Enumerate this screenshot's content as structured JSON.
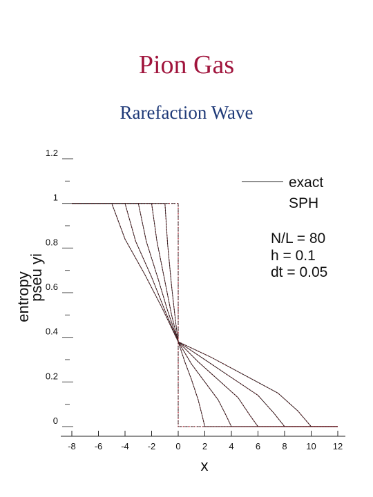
{
  "header": {
    "title": "Pion Gas",
    "subtitle": "Rarefaction Wave"
  },
  "chart_data": {
    "type": "line",
    "xlabel": "x",
    "ylabel_line1": "entropy",
    "ylabel_line2": "pseu yi",
    "xlim": [
      -8,
      12
    ],
    "ylim": [
      0,
      1.2
    ],
    "x_ticks": [
      "-8",
      "-6",
      "-4",
      "-2",
      "0",
      "2",
      "4",
      "6",
      "8",
      "10",
      "12"
    ],
    "y_ticks": [
      "0",
      "0.2",
      "0.4",
      "0.6",
      "0.8",
      "1",
      "1.2"
    ],
    "legend": {
      "placement": "top-right",
      "entries": [
        "exact",
        "SPH"
      ]
    },
    "annotations": [
      "N/L = 80",
      "h = 0.1",
      "dt = 0.05"
    ],
    "series_colors": {
      "exact": "#222222",
      "SPH": "#b01020"
    },
    "series": [
      {
        "x": [
          -8,
          0,
          0,
          0,
          12
        ],
        "y": [
          1,
          1,
          0.38,
          0,
          0
        ]
      },
      {
        "x": [
          -8,
          -1,
          -0.8,
          -0.5,
          -0.2,
          0,
          0.5,
          1.0,
          1.5,
          1.8,
          2,
          12
        ],
        "y": [
          1,
          1,
          0.82,
          0.63,
          0.47,
          0.38,
          0.29,
          0.21,
          0.12,
          0.05,
          0,
          0
        ]
      },
      {
        "x": [
          -8,
          -2,
          -1.6,
          -1.0,
          -0.5,
          0,
          1.0,
          2.0,
          3.0,
          3.6,
          4,
          12
        ],
        "y": [
          1,
          1,
          0.83,
          0.65,
          0.5,
          0.38,
          0.28,
          0.2,
          0.12,
          0.05,
          0,
          0
        ]
      },
      {
        "x": [
          -8,
          -3,
          -2.4,
          -1.5,
          -0.8,
          0,
          1.5,
          3.0,
          4.5,
          5.4,
          6,
          12
        ],
        "y": [
          1,
          1,
          0.83,
          0.66,
          0.52,
          0.38,
          0.29,
          0.21,
          0.13,
          0.05,
          0,
          0
        ]
      },
      {
        "x": [
          -8,
          -4,
          -3.2,
          -2.0,
          -1.0,
          0,
          2.0,
          4.0,
          6.0,
          7.2,
          8,
          12
        ],
        "y": [
          1,
          1,
          0.83,
          0.67,
          0.52,
          0.38,
          0.3,
          0.22,
          0.14,
          0.06,
          0,
          0
        ]
      },
      {
        "x": [
          -8,
          -5,
          -4.0,
          -2.5,
          -1.2,
          0,
          2.5,
          5.0,
          7.5,
          9.0,
          10,
          12
        ],
        "y": [
          1,
          1,
          0.84,
          0.68,
          0.53,
          0.38,
          0.31,
          0.23,
          0.15,
          0.07,
          0,
          0
        ]
      }
    ]
  }
}
